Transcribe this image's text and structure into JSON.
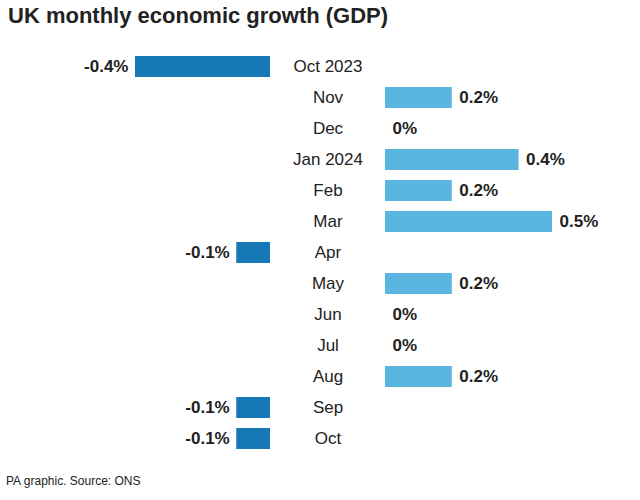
{
  "chart_data": {
    "type": "bar",
    "orientation": "horizontal",
    "title": "UK monthly economic growth (GDP)",
    "caption": "PA graphic. Source: ONS",
    "categories": [
      "Oct 2023",
      "Nov",
      "Dec",
      "Jan 2024",
      "Feb",
      "Mar",
      "Apr",
      "May",
      "Jun",
      "Jul",
      "Aug",
      "Sep",
      "Oct"
    ],
    "values": [
      -0.4,
      0.2,
      0,
      0.4,
      0.2,
      0.5,
      -0.1,
      0.2,
      0,
      0,
      0.2,
      -0.1,
      -0.1
    ],
    "value_labels": [
      "-0.4%",
      "0.2%",
      "0%",
      "0.4%",
      "0.2%",
      "0.5%",
      "-0.1%",
      "0.2%",
      "0%",
      "0%",
      "0.2%",
      "-0.1%",
      "-0.1%"
    ],
    "colors": [
      "#1778b6",
      "#5ab5e1",
      "#5ab5e1",
      "#5ab5e1",
      "#5ab5e1",
      "#5ab5e1",
      "#1778b6",
      "#5ab5e1",
      "#5ab5e1",
      "#5ab5e1",
      "#5ab5e1",
      "#1778b6",
      "#1778b6"
    ],
    "xlim": [
      -0.4,
      0.5
    ],
    "data_labels": true,
    "tick_labels": "y",
    "grid": false
  }
}
